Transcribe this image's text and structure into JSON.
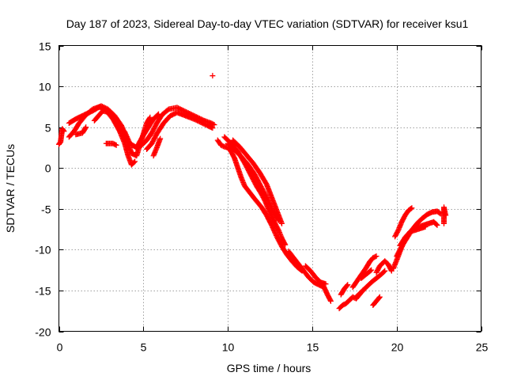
{
  "chart_data": {
    "type": "scatter",
    "title": "Day 187 of 2023, Sidereal Day-to-day VTEC variation (SDTVAR) for receiver ksu1",
    "xlabel": "GPS time / hours",
    "ylabel": "SDTVAR / TECUs",
    "xlim": [
      0,
      25
    ],
    "ylim": [
      -20,
      15
    ],
    "xticks": [
      0,
      5,
      10,
      15,
      20,
      25
    ],
    "yticks": [
      -20,
      -15,
      -10,
      -5,
      0,
      5,
      10,
      15
    ],
    "grid": true,
    "marker": "+",
    "color": "#ff0000",
    "series": [
      {
        "name": "SDTVAR",
        "tracks": [
          {
            "points": [
              [
                0.0,
                2.9
              ],
              [
                0.1,
                3.2
              ],
              [
                0.2,
                4.8
              ],
              [
                0.3,
                4.5
              ]
            ]
          },
          {
            "points": [
              [
                0.6,
                3.8
              ],
              [
                0.9,
                4.5
              ],
              [
                1.2,
                5.5
              ],
              [
                1.6,
                6.5
              ],
              [
                2.0,
                7.2
              ],
              [
                2.4,
                7.5
              ],
              [
                2.8,
                7.0
              ],
              [
                3.2,
                6.0
              ],
              [
                3.6,
                4.5
              ],
              [
                3.9,
                3.0
              ],
              [
                4.1,
                1.5
              ],
              [
                4.3,
                0.4
              ],
              [
                4.5,
                0.8
              ]
            ]
          },
          {
            "points": [
              [
                0.6,
                5.5
              ],
              [
                1.0,
                6.0
              ],
              [
                1.5,
                6.5
              ],
              [
                2.0,
                7.0
              ],
              [
                2.5,
                7.6
              ],
              [
                2.9,
                7.2
              ],
              [
                3.3,
                6.4
              ],
              [
                3.7,
                5.2
              ],
              [
                4.0,
                3.6
              ],
              [
                4.3,
                1.8
              ],
              [
                4.6,
                1.5
              ],
              [
                4.9,
                3.5
              ],
              [
                5.2,
                5.5
              ],
              [
                5.4,
                6.2
              ]
            ]
          },
          {
            "points": [
              [
                1.0,
                4.1
              ],
              [
                1.4,
                4.3
              ],
              [
                1.6,
                5.0
              ]
            ]
          },
          {
            "points": [
              [
                2.1,
                5.8
              ],
              [
                2.6,
                7.0
              ],
              [
                3.0,
                6.8
              ],
              [
                3.5,
                5.5
              ],
              [
                3.9,
                4.4
              ],
              [
                4.2,
                3.0
              ],
              [
                4.6,
                2.5
              ],
              [
                5.0,
                4.0
              ],
              [
                5.3,
                5.0
              ],
              [
                5.6,
                6.0
              ],
              [
                5.9,
                6.6
              ]
            ]
          },
          {
            "points": [
              [
                2.8,
                3.0
              ],
              [
                3.2,
                3.0
              ],
              [
                3.4,
                2.8
              ]
            ]
          },
          {
            "points": [
              [
                4.6,
                2.4
              ],
              [
                4.9,
                2.8
              ],
              [
                5.2,
                3.4
              ],
              [
                5.5,
                4.3
              ],
              [
                5.8,
                5.5
              ],
              [
                6.1,
                6.5
              ],
              [
                6.5,
                7.2
              ],
              [
                7.0,
                7.4
              ],
              [
                7.4,
                7.0
              ],
              [
                7.8,
                6.6
              ],
              [
                8.2,
                6.2
              ],
              [
                8.6,
                5.8
              ],
              [
                9.0,
                5.5
              ],
              [
                9.2,
                5.3
              ]
            ]
          },
          {
            "points": [
              [
                5.2,
                2.3
              ],
              [
                5.5,
                3.0
              ],
              [
                5.8,
                4.2
              ],
              [
                6.2,
                5.5
              ],
              [
                6.6,
                6.4
              ],
              [
                7.0,
                6.8
              ],
              [
                7.5,
                6.4
              ],
              [
                8.0,
                6.0
              ],
              [
                8.4,
                5.6
              ],
              [
                8.8,
                5.2
              ],
              [
                9.1,
                4.9
              ]
            ]
          },
          {
            "points": [
              [
                5.6,
                1.5
              ],
              [
                5.8,
                2.5
              ],
              [
                6.0,
                3.6
              ]
            ]
          },
          {
            "points": [
              [
                9.1,
                11.3
              ]
            ]
          },
          {
            "points": [
              [
                9.4,
                3.4
              ],
              [
                9.6,
                2.8
              ],
              [
                9.8,
                2.6
              ],
              [
                10.0,
                2.5
              ],
              [
                10.2,
                2.0
              ],
              [
                10.4,
                1.2
              ],
              [
                10.6,
                0.0
              ],
              [
                10.8,
                -1.2
              ],
              [
                11.0,
                -2.2
              ],
              [
                11.3,
                -3.0
              ],
              [
                11.6,
                -3.8
              ],
              [
                12.0,
                -4.8
              ],
              [
                12.3,
                -5.8
              ],
              [
                12.6,
                -7.0
              ],
              [
                12.9,
                -8.4
              ],
              [
                13.2,
                -9.6
              ],
              [
                13.5,
                -10.6
              ],
              [
                13.8,
                -11.4
              ],
              [
                14.1,
                -12.1
              ],
              [
                14.4,
                -12.6
              ]
            ]
          },
          {
            "points": [
              [
                9.8,
                3.8
              ],
              [
                10.2,
                3.0
              ],
              [
                10.6,
                2.0
              ],
              [
                11.0,
                0.6
              ],
              [
                11.4,
                -1.0
              ],
              [
                11.7,
                -2.2
              ],
              [
                12.0,
                -3.2
              ],
              [
                12.2,
                -4.0
              ],
              [
                12.5,
                -5.5
              ],
              [
                12.8,
                -6.8
              ],
              [
                13.0,
                -7.6
              ],
              [
                13.2,
                -8.6
              ],
              [
                13.4,
                -9.4
              ]
            ]
          },
          {
            "points": [
              [
                10.3,
                3.4
              ],
              [
                10.7,
                2.6
              ],
              [
                11.1,
                1.6
              ],
              [
                11.5,
                0.6
              ],
              [
                11.9,
                -0.6
              ],
              [
                12.3,
                -2.0
              ],
              [
                12.6,
                -3.6
              ],
              [
                12.9,
                -5.2
              ],
              [
                13.2,
                -6.8
              ]
            ]
          },
          {
            "points": [
              [
                10.0,
                3.0
              ],
              [
                10.4,
                2.2
              ],
              [
                10.8,
                1.4
              ],
              [
                11.2,
                0.4
              ],
              [
                11.6,
                -0.8
              ],
              [
                12.0,
                -2.4
              ],
              [
                12.4,
                -4.0
              ],
              [
                12.7,
                -5.4
              ],
              [
                13.0,
                -6.4
              ]
            ]
          },
          {
            "points": [
              [
                13.6,
                -10.2
              ],
              [
                13.9,
                -11.0
              ],
              [
                14.2,
                -11.8
              ],
              [
                14.5,
                -12.6
              ],
              [
                14.8,
                -13.4
              ],
              [
                15.1,
                -14.0
              ],
              [
                15.4,
                -14.3
              ],
              [
                15.7,
                -14.6
              ],
              [
                15.9,
                -15.5
              ],
              [
                16.1,
                -16.3
              ]
            ]
          },
          {
            "points": [
              [
                14.6,
                -12.0
              ],
              [
                14.9,
                -12.6
              ],
              [
                15.2,
                -13.4
              ],
              [
                15.5,
                -14.0
              ],
              [
                15.8,
                -14.2
              ]
            ]
          },
          {
            "points": [
              [
                16.6,
                -17.2
              ],
              [
                16.8,
                -16.8
              ],
              [
                17.0,
                -16.6
              ],
              [
                17.2,
                -16.2
              ],
              [
                17.4,
                -15.8
              ],
              [
                17.6,
                -16.0
              ],
              [
                17.8,
                -15.5
              ],
              [
                18.0,
                -15.0
              ]
            ]
          },
          {
            "points": [
              [
                16.7,
                -15.5
              ],
              [
                16.9,
                -14.8
              ],
              [
                17.1,
                -14.3
              ]
            ]
          },
          {
            "points": [
              [
                17.4,
                -14.6
              ],
              [
                17.6,
                -14.0
              ],
              [
                17.8,
                -13.4
              ],
              [
                18.0,
                -12.8
              ],
              [
                18.2,
                -12.2
              ],
              [
                18.4,
                -11.5
              ],
              [
                18.6,
                -11.0
              ],
              [
                18.8,
                -10.8
              ]
            ]
          },
          {
            "points": [
              [
                17.6,
                -15.8
              ],
              [
                17.9,
                -15.2
              ],
              [
                18.2,
                -14.6
              ],
              [
                18.5,
                -14.0
              ],
              [
                18.8,
                -13.5
              ],
              [
                19.1,
                -13.0
              ],
              [
                19.3,
                -12.6
              ]
            ]
          },
          {
            "points": [
              [
                17.9,
                -13.5
              ],
              [
                18.2,
                -13.0
              ],
              [
                18.5,
                -12.5
              ]
            ]
          },
          {
            "points": [
              [
                18.6,
                -16.8
              ],
              [
                18.8,
                -16.3
              ],
              [
                19.0,
                -15.8
              ]
            ]
          },
          {
            "points": [
              [
                18.8,
                -12.8
              ],
              [
                19.0,
                -12.0
              ],
              [
                19.3,
                -11.4
              ],
              [
                19.5,
                -11.8
              ],
              [
                19.7,
                -12.6
              ]
            ]
          },
          {
            "points": [
              [
                19.8,
                -12.3
              ],
              [
                20.0,
                -11.3
              ],
              [
                20.2,
                -10.2
              ],
              [
                20.4,
                -9.2
              ],
              [
                20.6,
                -8.4
              ],
              [
                20.8,
                -7.8
              ],
              [
                21.0,
                -7.4
              ],
              [
                21.3,
                -7.2
              ],
              [
                21.6,
                -7.0
              ],
              [
                21.9,
                -6.8
              ],
              [
                22.2,
                -6.6
              ],
              [
                22.4,
                -7.0
              ]
            ]
          },
          {
            "points": [
              [
                20.0,
                -10.8
              ],
              [
                20.3,
                -9.6
              ],
              [
                20.6,
                -8.6
              ],
              [
                20.9,
                -7.6
              ],
              [
                21.2,
                -6.8
              ],
              [
                21.5,
                -6.2
              ],
              [
                21.8,
                -5.7
              ],
              [
                22.1,
                -5.4
              ],
              [
                22.4,
                -5.3
              ],
              [
                22.6,
                -5.6
              ]
            ]
          },
          {
            "points": [
              [
                20.2,
                -9.5
              ],
              [
                20.5,
                -8.5
              ],
              [
                20.8,
                -7.8
              ],
              [
                21.1,
                -7.6
              ],
              [
                21.4,
                -7.4
              ],
              [
                21.7,
                -7.2
              ]
            ]
          },
          {
            "points": [
              [
                19.9,
                -8.4
              ],
              [
                20.1,
                -7.6
              ],
              [
                20.3,
                -6.6
              ],
              [
                20.5,
                -5.8
              ],
              [
                20.7,
                -5.2
              ],
              [
                20.9,
                -4.9
              ]
            ]
          },
          {
            "points": [
              [
                22.8,
                -6.8
              ],
              [
                22.8,
                -6.0
              ],
              [
                22.8,
                -5.2
              ],
              [
                22.8,
                -4.8
              ],
              [
                22.9,
                -5.8
              ]
            ]
          }
        ]
      }
    ]
  }
}
